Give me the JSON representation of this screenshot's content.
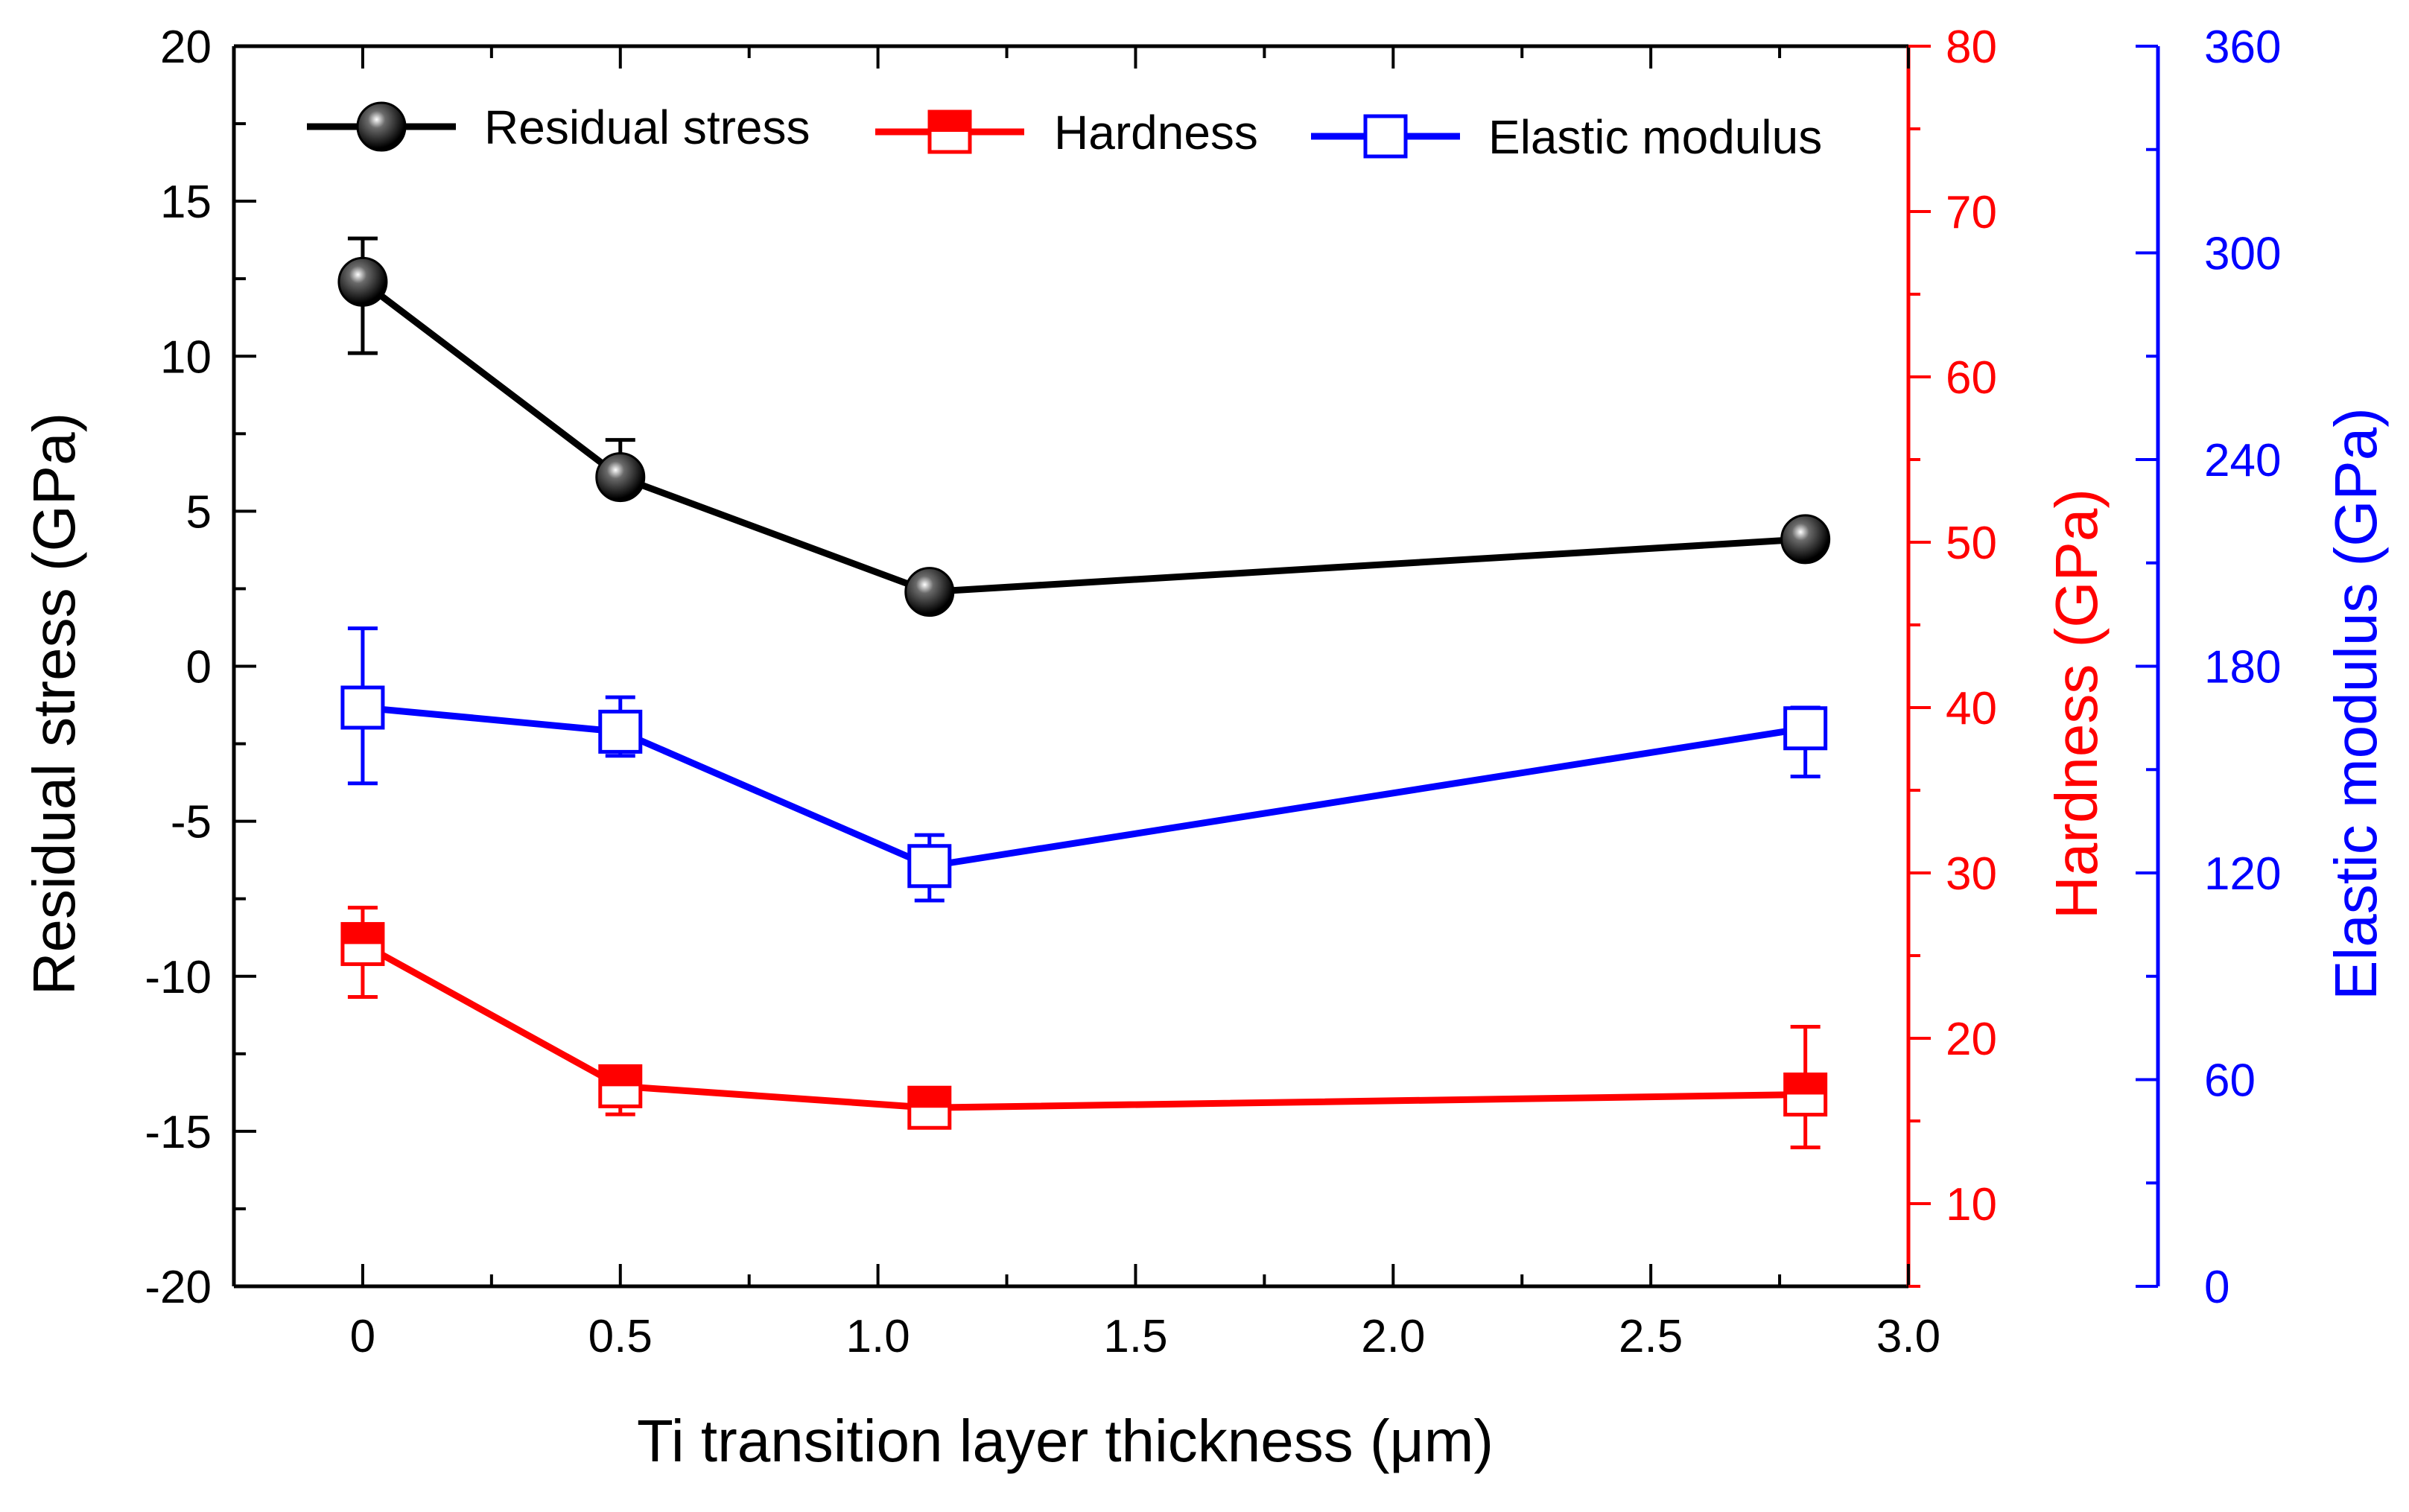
{
  "chart_data": {
    "type": "line",
    "title": "",
    "xlabel": "Ti transition layer thickness (μm)",
    "xlim": [
      -0.25,
      3.0
    ],
    "xticks": [
      0,
      0.5,
      1.0,
      1.5,
      2.0,
      2.5,
      3.0
    ],
    "xtick_labels": [
      "0",
      "0.5",
      "1.0",
      "1.5",
      "2.0",
      "2.5",
      "3.0"
    ],
    "axes": {
      "left": {
        "label": "Residual stress (GPa)",
        "ylim": [
          -20,
          20
        ],
        "ticks": [
          -20,
          -15,
          -10,
          -5,
          0,
          5,
          10,
          15,
          20
        ],
        "tick_labels": [
          "-20",
          "-15",
          "-10",
          "-5",
          "0",
          "5",
          "10",
          "15",
          "20"
        ],
        "color": "#000000"
      },
      "right1": {
        "label": "Hardness (GPa)",
        "ylim": [
          5,
          80
        ],
        "ticks": [
          10,
          20,
          30,
          40,
          50,
          60,
          70,
          80
        ],
        "tick_labels": [
          "10",
          "20",
          "30",
          "40",
          "50",
          "60",
          "70",
          "80"
        ],
        "color": "#ff0000"
      },
      "right2": {
        "label": "Elastic modulus (GPa)",
        "ylim": [
          0,
          360
        ],
        "ticks": [
          0,
          60,
          120,
          180,
          240,
          300,
          360
        ],
        "tick_labels": [
          "0",
          "60",
          "120",
          "180",
          "240",
          "300",
          "360"
        ],
        "color": "#0000ff"
      }
    },
    "series": [
      {
        "name": "Residual stress",
        "axis": "left",
        "color": "#000000",
        "marker": "sphere",
        "x": [
          0,
          0.5,
          1.1,
          2.8
        ],
        "y": [
          12.4,
          6.1,
          2.4,
          4.1
        ],
        "err_low": [
          10.1,
          5.9,
          2.4,
          4.1
        ],
        "err_high": [
          13.8,
          7.3,
          2.4,
          4.1
        ]
      },
      {
        "name": "Hardness",
        "axis": "right1",
        "color": "#ff0000",
        "marker": "half-filled-square",
        "x": [
          0,
          0.5,
          1.1,
          2.8
        ],
        "y": [
          25.7,
          17.1,
          15.8,
          16.6
        ],
        "err_low": [
          22.5,
          15.4,
          15.0,
          13.4
        ],
        "err_high": [
          27.9,
          17.6,
          16.4,
          20.7
        ]
      },
      {
        "name": "Elastic modulus",
        "axis": "right2",
        "color": "#0000ff",
        "marker": "open-square",
        "x": [
          0,
          0.5,
          1.1,
          2.8
        ],
        "y": [
          168,
          161,
          122,
          162
        ],
        "err_low": [
          146,
          154,
          112,
          148
        ],
        "err_high": [
          191,
          171,
          131,
          168
        ]
      }
    ],
    "legend": {
      "position": "top",
      "entries": [
        "Residual stress",
        "Hardness",
        "Elastic modulus"
      ]
    },
    "grid": false
  }
}
